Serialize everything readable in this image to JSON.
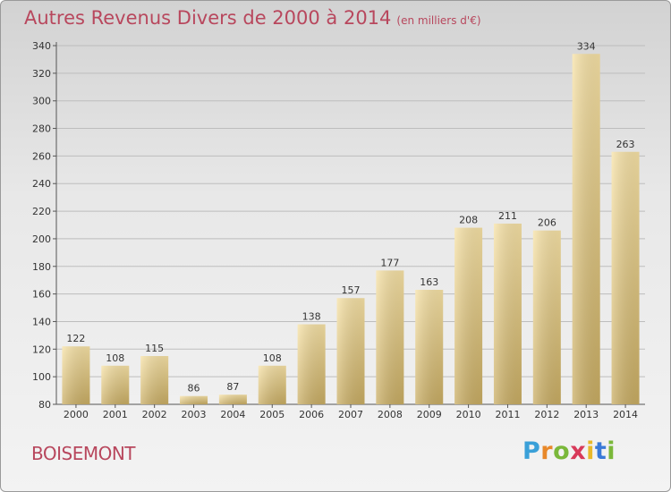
{
  "title": "Autres Revenus Divers de 2000 à 2014",
  "title_unit": "(en milliers d'€)",
  "commune": "BOISEMONT",
  "brand": {
    "letters": [
      "P",
      "r",
      "o",
      "x",
      "i",
      "t",
      "i"
    ]
  },
  "colors": {
    "title": "#b8475d",
    "bar_light": "#f7e2a6",
    "bar_dark": "#c9ad63",
    "grid": "#bdbdbd"
  },
  "chart_data": {
    "type": "bar",
    "title": "Autres Revenus Divers de 2000 à 2014",
    "categories": [
      "2000",
      "2001",
      "2002",
      "2003",
      "2004",
      "2005",
      "2006",
      "2007",
      "2008",
      "2009",
      "2010",
      "2011",
      "2012",
      "2013",
      "2014"
    ],
    "values": [
      122,
      108,
      115,
      86,
      87,
      108,
      138,
      157,
      177,
      163,
      208,
      211,
      206,
      334,
      263
    ],
    "ylim": [
      80,
      340
    ],
    "yticks": [
      80,
      100,
      120,
      140,
      160,
      180,
      200,
      220,
      240,
      260,
      280,
      300,
      320,
      340
    ],
    "grid": true,
    "xlabel": "",
    "ylabel": ""
  }
}
